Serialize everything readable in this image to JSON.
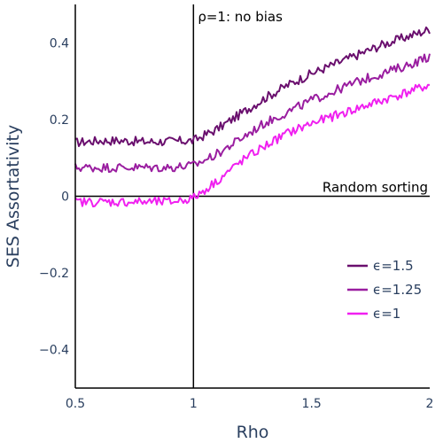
{
  "chart_data": {
    "type": "line",
    "title": "",
    "xlabel": "Rho",
    "ylabel": "SES Assortativity",
    "xlim": [
      0.5,
      2.0
    ],
    "ylim": [
      -0.5,
      0.5
    ],
    "x_ticks": [
      {
        "value": 0.5,
        "label": "0.5"
      },
      {
        "value": 1.0,
        "label": "1"
      },
      {
        "value": 1.5,
        "label": "1.5"
      },
      {
        "value": 2.0,
        "label": "2"
      }
    ],
    "y_ticks": [
      {
        "value": -0.4,
        "label": "−0.4"
      },
      {
        "value": -0.2,
        "label": "−0.2"
      },
      {
        "value": 0,
        "label": "0"
      },
      {
        "value": 0.2,
        "label": "0.2"
      },
      {
        "value": 0.4,
        "label": "0.4"
      }
    ],
    "grid": false,
    "legend_position": "bottom-right",
    "annotations": {
      "vline_x": 1.0,
      "vline_label": "ρ=1: no bias",
      "hline_y": 0,
      "hline_label": "Random sorting"
    },
    "series": [
      {
        "name": "ϵ=1.5",
        "color": "#6a0f6e",
        "points": [
          [
            0.5,
            0.14
          ],
          [
            0.6,
            0.145
          ],
          [
            0.7,
            0.145
          ],
          [
            0.8,
            0.142
          ],
          [
            0.9,
            0.143
          ],
          [
            1.0,
            0.145
          ],
          [
            1.1,
            0.175
          ],
          [
            1.2,
            0.215
          ],
          [
            1.3,
            0.255
          ],
          [
            1.4,
            0.29
          ],
          [
            1.5,
            0.32
          ],
          [
            1.6,
            0.345
          ],
          [
            1.7,
            0.37
          ],
          [
            1.8,
            0.395
          ],
          [
            1.9,
            0.415
          ],
          [
            2.0,
            0.435
          ]
        ]
      },
      {
        "name": "ϵ=1.25",
        "color": "#9a1ea0",
        "points": [
          [
            0.5,
            0.075
          ],
          [
            0.6,
            0.075
          ],
          [
            0.7,
            0.075
          ],
          [
            0.8,
            0.075
          ],
          [
            0.9,
            0.075
          ],
          [
            1.0,
            0.08
          ],
          [
            1.1,
            0.11
          ],
          [
            1.2,
            0.15
          ],
          [
            1.3,
            0.19
          ],
          [
            1.4,
            0.22
          ],
          [
            1.5,
            0.25
          ],
          [
            1.6,
            0.275
          ],
          [
            1.7,
            0.3
          ],
          [
            1.8,
            0.32
          ],
          [
            1.9,
            0.34
          ],
          [
            2.0,
            0.365
          ]
        ]
      },
      {
        "name": "ϵ=1",
        "color": "#f020f0",
        "points": [
          [
            0.5,
            -0.015
          ],
          [
            0.6,
            -0.015
          ],
          [
            0.7,
            -0.015
          ],
          [
            0.8,
            -0.015
          ],
          [
            0.9,
            -0.015
          ],
          [
            1.0,
            -0.005
          ],
          [
            1.1,
            0.04
          ],
          [
            1.2,
            0.09
          ],
          [
            1.3,
            0.13
          ],
          [
            1.4,
            0.165
          ],
          [
            1.5,
            0.19
          ],
          [
            1.6,
            0.21
          ],
          [
            1.7,
            0.23
          ],
          [
            1.8,
            0.25
          ],
          [
            1.9,
            0.27
          ],
          [
            2.0,
            0.29
          ]
        ]
      }
    ]
  }
}
